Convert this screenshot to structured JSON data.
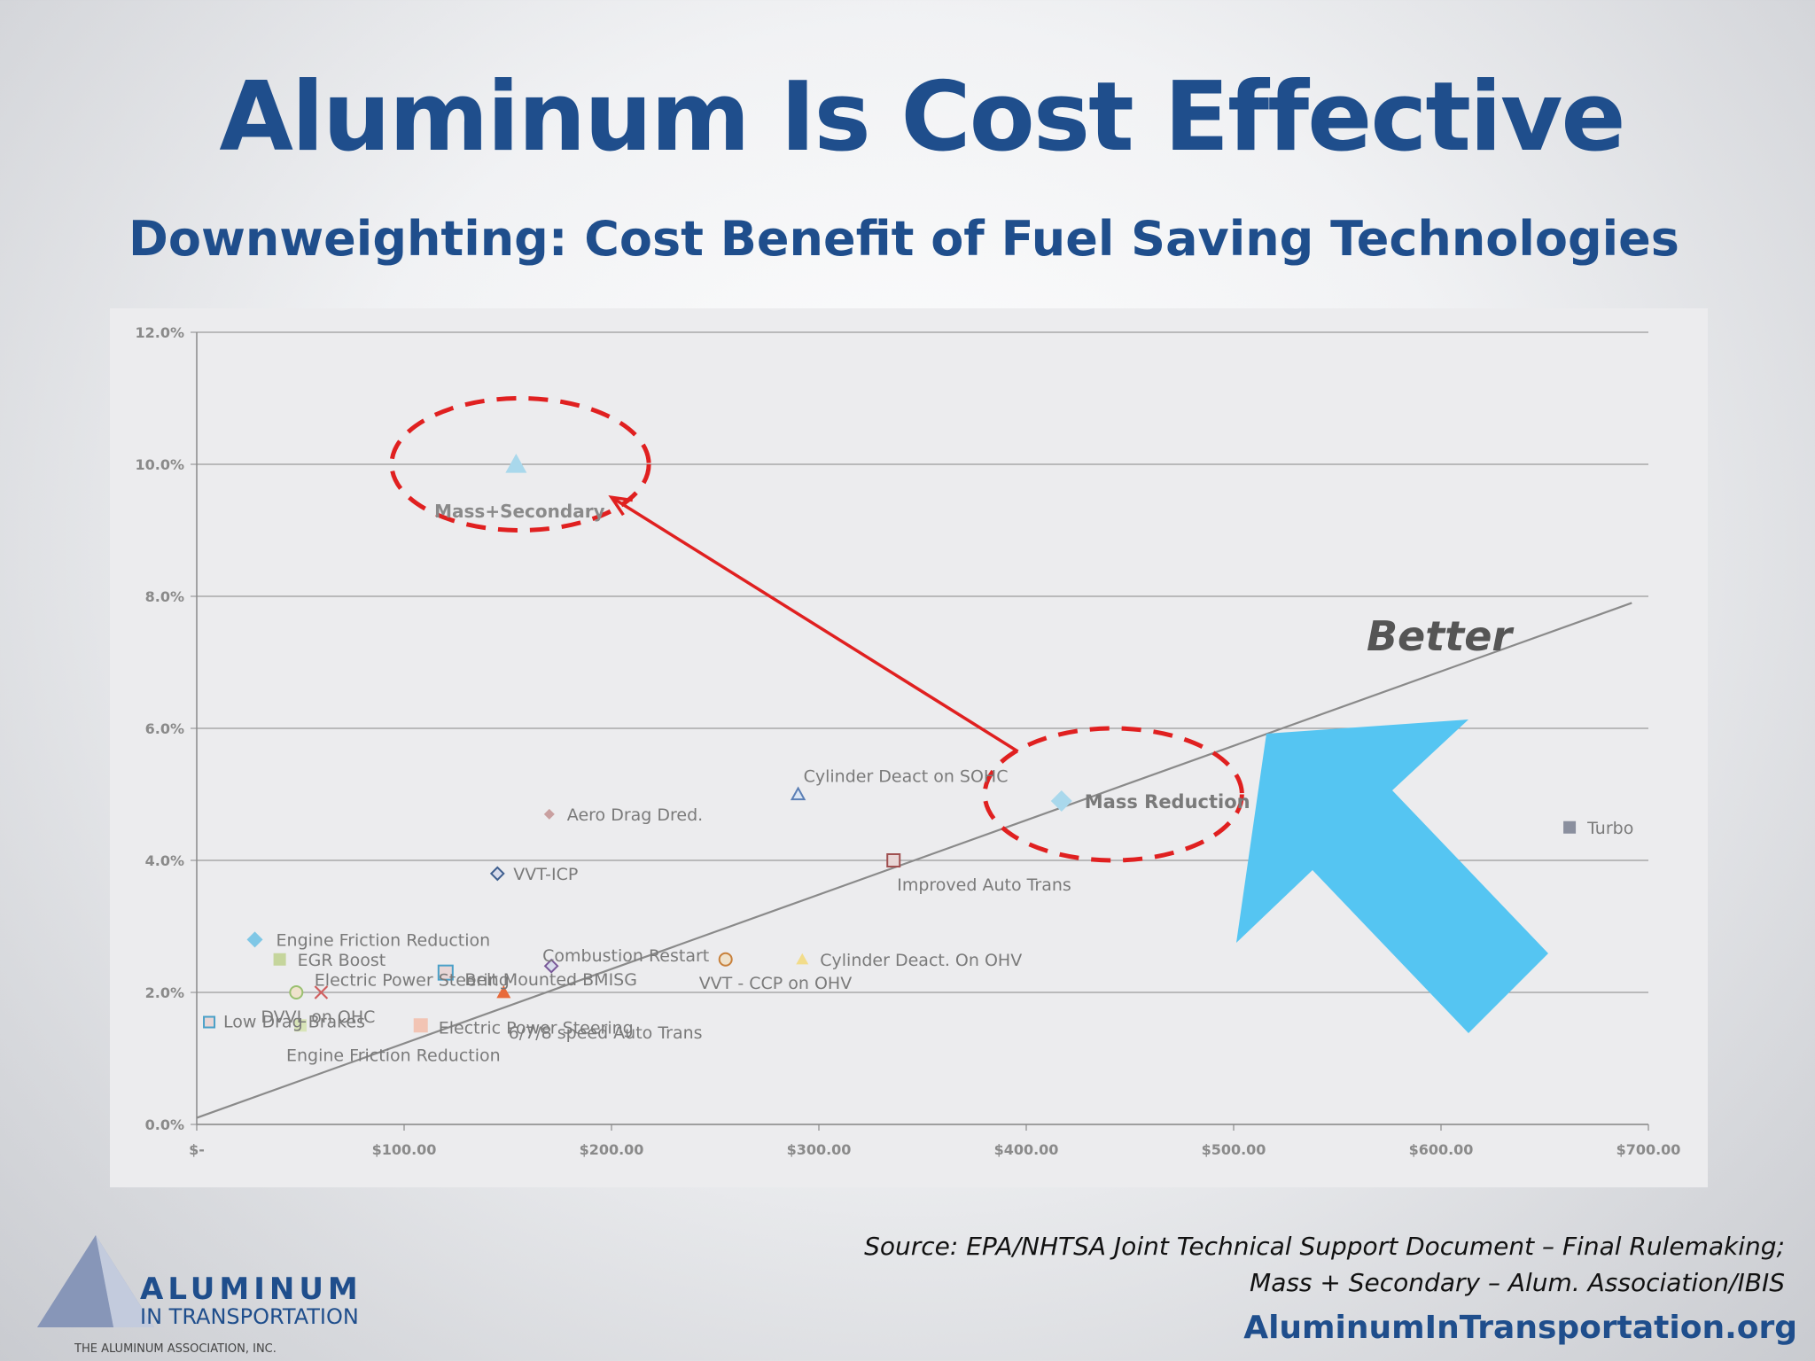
{
  "slide": {
    "title": "Aluminum Is Cost Effective",
    "subtitle": "Downweighting: Cost Benefit of Fuel Saving Technologies",
    "source_line1": "Source: EPA/NHTSA Joint Technical Support Document – Final Rulemaking;",
    "source_line2": "Mass + Secondary – Alum. Association/IBIS",
    "website": "AluminumInTransportation.org",
    "logo": {
      "line1": "ALUMINUM",
      "line2": "IN TRANSPORTATION",
      "line3": "THE ALUMINUM ASSOCIATION, INC.",
      "icon": "pyramid-logo-icon"
    }
  },
  "chart_data": {
    "type": "scatter",
    "title": "",
    "xlabel": "",
    "ylabel": "",
    "xlim": [
      0,
      700
    ],
    "ylim": [
      0,
      12
    ],
    "x_ticks": [
      {
        "v": 0,
        "label": "$-"
      },
      {
        "v": 100,
        "label": "$100.00"
      },
      {
        "v": 200,
        "label": "$200.00"
      },
      {
        "v": 300,
        "label": "$300.00"
      },
      {
        "v": 400,
        "label": "$400.00"
      },
      {
        "v": 500,
        "label": "$500.00"
      },
      {
        "v": 600,
        "label": "$600.00"
      },
      {
        "v": 700,
        "label": "$700.00"
      }
    ],
    "y_ticks": [
      {
        "v": 0,
        "label": "0.0%"
      },
      {
        "v": 2,
        "label": "2.0%"
      },
      {
        "v": 4,
        "label": "4.0%"
      },
      {
        "v": 6,
        "label": "6.0%"
      },
      {
        "v": 8,
        "label": "8.0%"
      },
      {
        "v": 10,
        "label": "10.0%"
      },
      {
        "v": 12,
        "label": "12.0%"
      }
    ],
    "grid": "horizontal",
    "trendline": {
      "x": [
        0,
        692
      ],
      "y": [
        0.1,
        7.9
      ],
      "color": "#8a8a8a"
    },
    "points": [
      {
        "label": "Mass+Secondary",
        "x": 154,
        "y": 10.0,
        "marker": "triangle",
        "color": "#a9d8ec",
        "size": 12,
        "lx": 4,
        "ly": 60,
        "anchor": "middle",
        "style": "bold"
      },
      {
        "label": "Mass Reduction",
        "x": 417,
        "y": 4.9,
        "marker": "diamond",
        "color": "#a9d8ec",
        "size": 12,
        "lx": 26,
        "ly": 8,
        "anchor": "start",
        "style": "big"
      },
      {
        "label": "Cylinder Deact on SOHC",
        "x": 290,
        "y": 5.0,
        "marker": "triangle-open",
        "color": "#5b7fb5",
        "size": 7,
        "lx": 6,
        "ly": -14,
        "anchor": "start",
        "style": ""
      },
      {
        "label": "Aero Drag Dred.",
        "x": 170,
        "y": 4.7,
        "marker": "diamond",
        "color": "#c9a0a0",
        "size": 6,
        "lx": 20,
        "ly": 7,
        "anchor": "start",
        "style": ""
      },
      {
        "label": "Turbo",
        "x": 662,
        "y": 4.5,
        "marker": "square",
        "color": "#8a8f9e",
        "size": 7,
        "lx": 20,
        "ly": 7,
        "anchor": "start",
        "style": ""
      },
      {
        "label": "Improved Auto Trans",
        "x": 336,
        "y": 4.0,
        "marker": "square-open",
        "color": "#a05050",
        "size": 7,
        "lx": 4,
        "ly": 34,
        "anchor": "start",
        "style": ""
      },
      {
        "label": "VVT-ICP",
        "x": 145,
        "y": 3.8,
        "marker": "diamond-open",
        "color": "#3f5f8f",
        "size": 7,
        "lx": 18,
        "ly": 7,
        "anchor": "start",
        "style": ""
      },
      {
        "label": "Engine Friction Reduction",
        "x": 28,
        "y": 2.8,
        "marker": "diamond",
        "color": "#7fc7e6",
        "size": 9,
        "lx": 24,
        "ly": 7,
        "anchor": "start",
        "style": ""
      },
      {
        "label": "EGR Boost",
        "x": 40,
        "y": 2.5,
        "marker": "square",
        "color": "#c5d59c",
        "size": 7,
        "lx": 20,
        "ly": 7,
        "anchor": "start",
        "style": ""
      },
      {
        "label": "Combustion Restart",
        "x": 171,
        "y": 2.4,
        "marker": "diamond-open",
        "color": "#7a5a9a",
        "size": 7,
        "lx": -10,
        "ly": -5,
        "anchor": "start",
        "style": ""
      },
      {
        "label": "Cylinder Deact. On OHV",
        "x": 292,
        "y": 2.5,
        "marker": "triangle",
        "color": "#f2dc8a",
        "size": 7,
        "lx": 20,
        "ly": 7,
        "anchor": "start",
        "style": ""
      },
      {
        "label": "VVT - CCP on OHV",
        "x": 255,
        "y": 2.5,
        "marker": "circle-open",
        "color": "#c8803a",
        "size": 7,
        "lx": -30,
        "ly": 33,
        "anchor": "start",
        "style": ""
      },
      {
        "label": "Electric Power Steering",
        "x": 120,
        "y": 2.3,
        "marker": "square-open",
        "color": "#4aa0c8",
        "size": 8,
        "lx": -148,
        "ly": 15,
        "anchor": "start",
        "style": ""
      },
      {
        "label": "Belt Mounted BMISG",
        "x": 148,
        "y": 2.0,
        "marker": "triangle",
        "color": "#e86a3a",
        "size": 8,
        "lx": -44,
        "ly": -8,
        "anchor": "start",
        "style": ""
      },
      {
        "label": "6/7/8 speed Auto Trans",
        "x": 146,
        "y": 1.8,
        "marker": "none",
        "color": "#888888",
        "size": 0,
        "lx": 10,
        "ly": 37,
        "anchor": "start",
        "style": ""
      },
      {
        "label": "Electric Power Steering",
        "x": 108,
        "y": 1.5,
        "marker": "square",
        "color": "#f2c4b4",
        "size": 8,
        "lx": 20,
        "ly": 9,
        "anchor": "start",
        "style": ""
      },
      {
        "label": "Low Drag Brakes",
        "x": 6,
        "y": 1.55,
        "marker": "square-open",
        "color": "#4aa0c8",
        "size": 6,
        "lx": 16,
        "ly": 6,
        "anchor": "start",
        "style": ""
      },
      {
        "label": "DVVL on OHC",
        "x": 48,
        "y": 2.0,
        "marker": "circle-open",
        "color": "#9ac070",
        "size": 7,
        "lx": -40,
        "ly": 34,
        "anchor": "start",
        "style": ""
      },
      {
        "label": "",
        "x": 60,
        "y": 2.0,
        "marker": "x",
        "color": "#d06060",
        "size": 7,
        "lx": 0,
        "ly": 0,
        "anchor": "start",
        "style": ""
      },
      {
        "label": "Engine Friction Reduction",
        "x": 50,
        "y": 1.5,
        "marker": "square",
        "color": "#d8e4b8",
        "size": 7,
        "lx": -16,
        "ly": 40,
        "anchor": "start",
        "style": ""
      }
    ],
    "annotations": {
      "better_label": "Better",
      "better_arrow_color": "#55c5f2",
      "highlight_color": "#e02020",
      "circles": [
        {
          "name": "mass-secondary",
          "cx": 156,
          "cy": 10.0,
          "rx_units": 62,
          "ry_units": 1.0
        },
        {
          "name": "mass-reduction",
          "cx": 442,
          "cy": 5.0,
          "rx_units": 62,
          "ry_units": 1.0
        }
      ],
      "connector": {
        "from": [
          396,
          5.65
        ],
        "to": [
          200,
          9.5
        ]
      }
    }
  }
}
